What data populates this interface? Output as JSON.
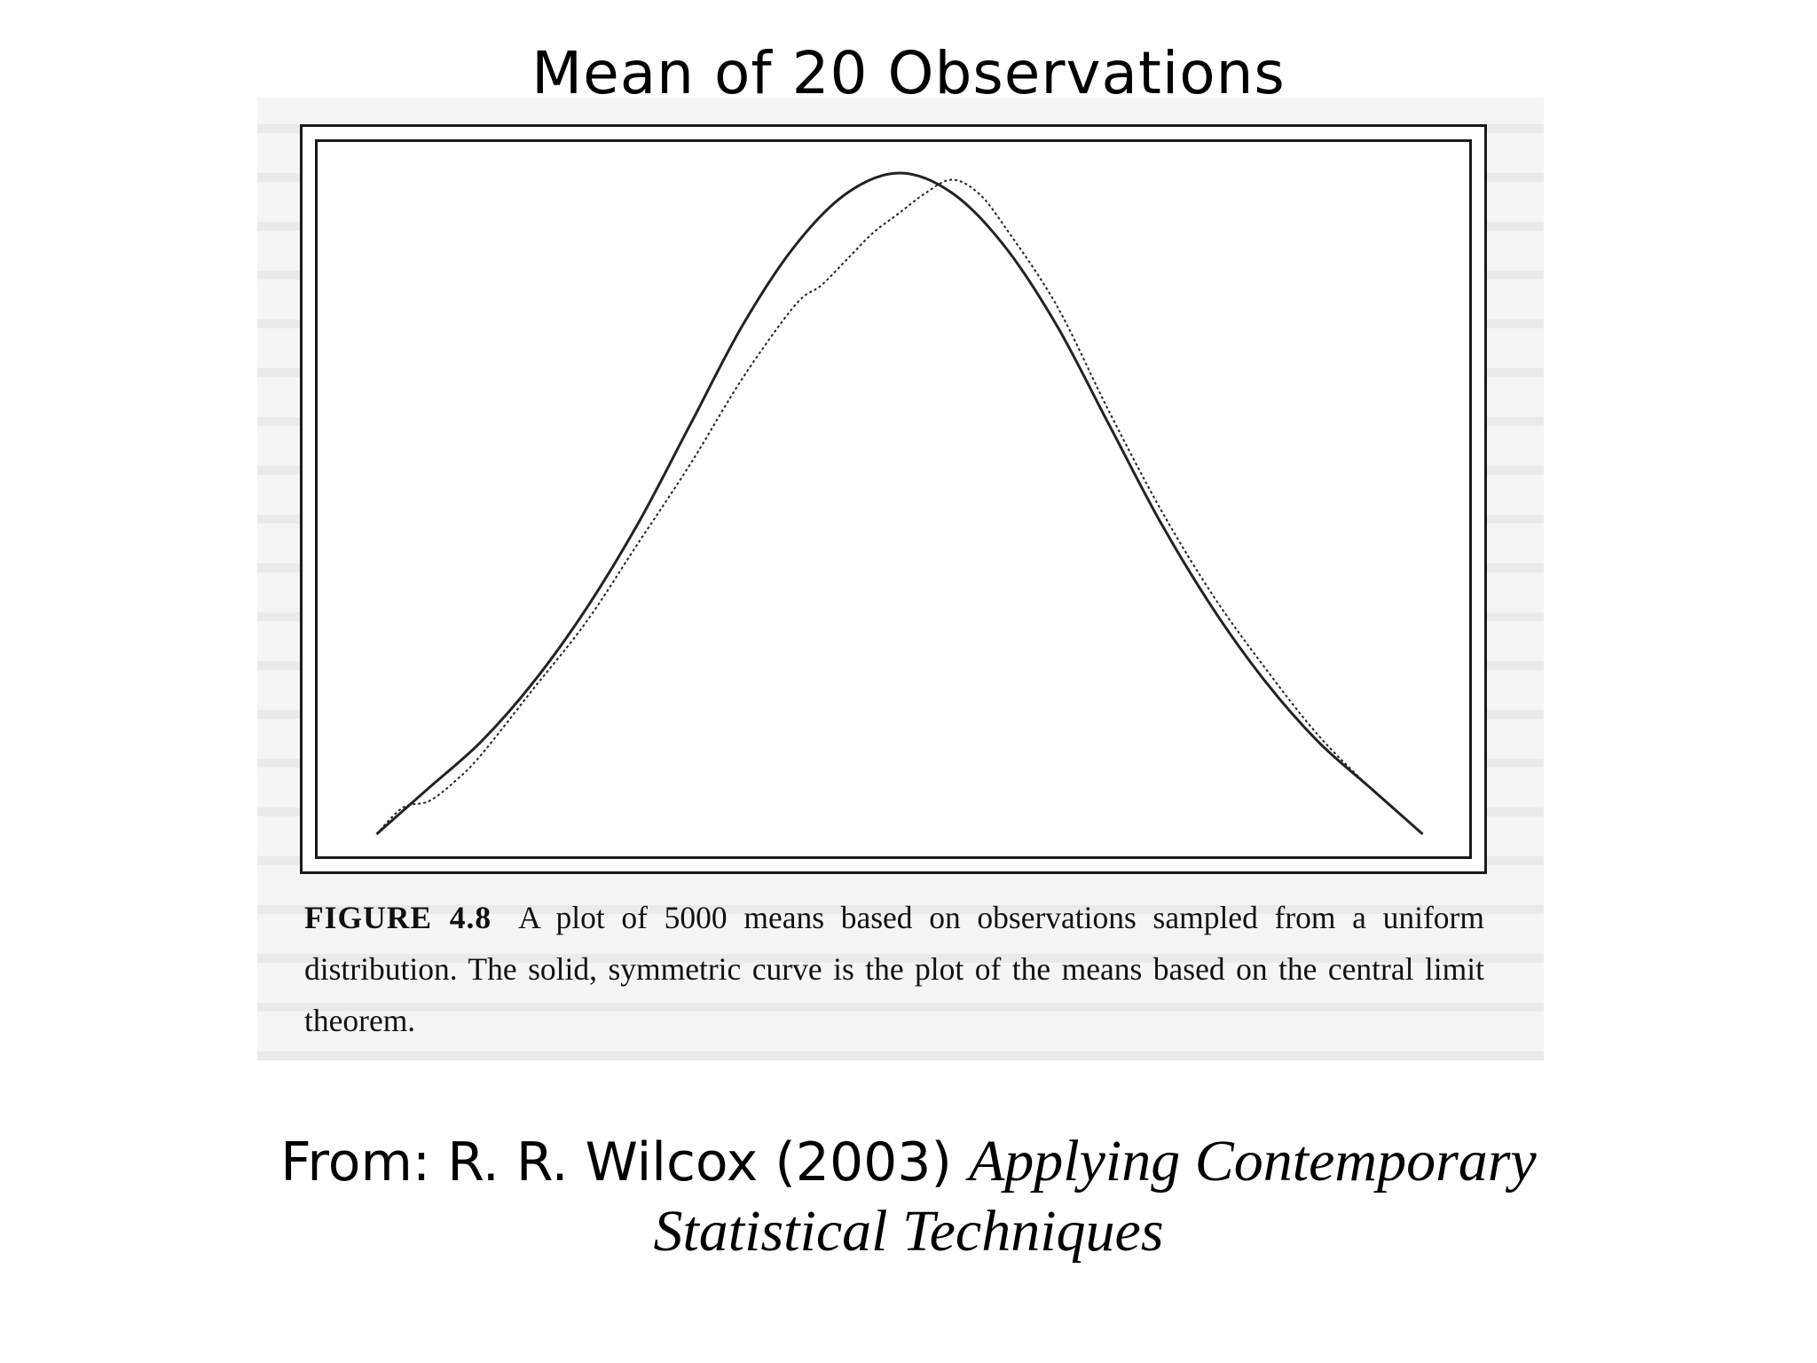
{
  "slide": {
    "title": "Mean of 20 Observations"
  },
  "figure": {
    "label": "FIGURE 4.8",
    "caption": "A plot of 5000 means based on observations sampled from a uniform distribution. The solid, symmetric curve is the plot of the means based on the central limit theorem."
  },
  "citation": {
    "prefix": "From: R. R. Wilcox (2003)",
    "title_line1": "Applying Contemporary",
    "title_line2": "Statistical Techniques"
  },
  "chart_data": {
    "type": "line",
    "title": "",
    "xlabel": "",
    "ylabel": "",
    "xlim": [
      0.29,
      0.71
    ],
    "ylim": [
      0,
      1
    ],
    "grid": false,
    "legend": "none",
    "series": [
      {
        "style": "solid",
        "x": [
          0.3,
          0.32,
          0.34,
          0.36,
          0.38,
          0.4,
          0.42,
          0.44,
          0.46,
          0.48,
          0.5,
          0.52,
          0.54,
          0.56,
          0.58,
          0.6,
          0.62,
          0.64,
          0.66,
          0.68,
          0.7
        ],
        "values": [
          0.0,
          0.07,
          0.14,
          0.23,
          0.34,
          0.47,
          0.62,
          0.77,
          0.89,
          0.97,
          1.0,
          0.97,
          0.89,
          0.77,
          0.62,
          0.47,
          0.34,
          0.23,
          0.14,
          0.07,
          0.0
        ]
      },
      {
        "style": "dotted",
        "x": [
          0.3,
          0.31,
          0.32,
          0.33,
          0.34,
          0.36,
          0.38,
          0.4,
          0.42,
          0.44,
          0.46,
          0.47,
          0.48,
          0.49,
          0.5,
          0.51,
          0.52,
          0.53,
          0.54,
          0.56,
          0.58,
          0.6,
          0.62,
          0.64,
          0.66,
          0.68,
          0.7
        ],
        "values": [
          0.0,
          0.04,
          0.05,
          0.08,
          0.12,
          0.22,
          0.32,
          0.44,
          0.56,
          0.69,
          0.8,
          0.83,
          0.87,
          0.91,
          0.94,
          0.97,
          0.99,
          0.97,
          0.92,
          0.8,
          0.64,
          0.49,
          0.36,
          0.25,
          0.15,
          0.07,
          0.0
        ]
      }
    ]
  }
}
